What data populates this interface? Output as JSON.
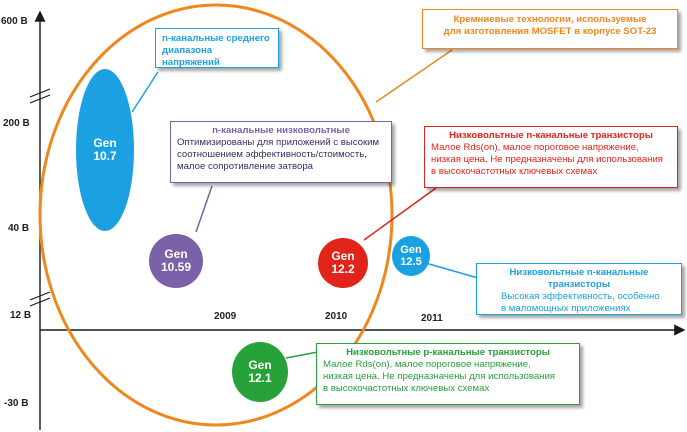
{
  "y_labels": [
    "600 В",
    "200 В",
    "40 В",
    "12 В",
    "-30 В"
  ],
  "years": [
    "2009",
    "2010",
    "2011"
  ],
  "colors": {
    "orange": "#f0871e",
    "cyan": "#1ba1e2",
    "purple": "#7b62a8",
    "red": "#e0241a",
    "green": "#27a13a",
    "axis": "#1a1a1a"
  },
  "gens": {
    "g107": [
      "Gen",
      "10.7"
    ],
    "g1059": [
      "Gen",
      "10.59"
    ],
    "g122": [
      "Gen",
      "12.2"
    ],
    "g125": [
      "Gen",
      "12.5"
    ],
    "g121": [
      "Gen",
      "12.1"
    ]
  },
  "callouts": {
    "silicon": {
      "title": "Кремниевые технологии, используемые",
      "body": "для изготовления MOSFET в корпусе SOT-23"
    },
    "mid": {
      "title": "n-канальные среднего",
      "body": "диапазона напряжений"
    },
    "lowv": {
      "title": "n-канальные низковольтные",
      "lines": [
        "Оптимизированы для приложений с высоким",
        "соотношением эффективность/стоимость,",
        "малое сопротивление затвора"
      ]
    },
    "red": {
      "title": "Низковольтные n-канальные транзисторы",
      "lines": [
        "Малое Rds(on), малое пороговое напряжение,",
        "низкая цена.  Не предназначены для использования",
        "в высокочастотных  ключевых схемах"
      ]
    },
    "cyan": {
      "title": "Низковольтные n-канальные транзисторы",
      "lines": [
        "Высокая эффективность, особенно",
        "в маломощных приложениях"
      ]
    },
    "green": {
      "title": "Низковольтные  p-канальные транзисторы",
      "lines": [
        "Малое Rds(on), малое пороговое напряжение,",
        "низкая цена.  Не предназначены для использования",
        "в высокочастотных ключевых схемах"
      ]
    }
  }
}
